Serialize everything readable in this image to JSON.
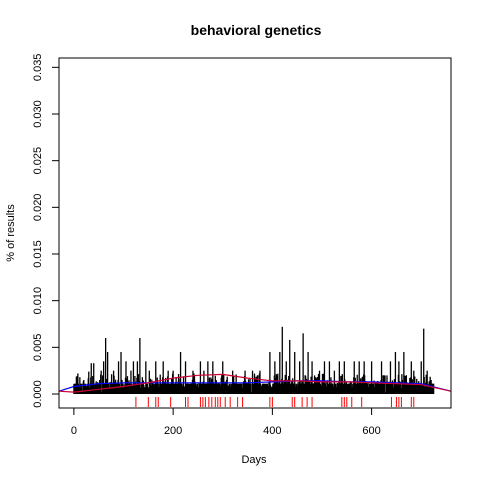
{
  "chart_data": {
    "type": "bar",
    "title": "behavioral genetics",
    "xlabel": "Days",
    "ylabel": "% of results",
    "xlim": [
      -30,
      760
    ],
    "ylim": [
      -0.0015,
      0.036
    ],
    "xticks": [
      0,
      200,
      400,
      600
    ],
    "xtick_labels": [
      "0",
      "200",
      "400",
      "600"
    ],
    "yticks": [
      0.0,
      0.005,
      0.01,
      0.015,
      0.02,
      0.025,
      0.03,
      0.035
    ],
    "ytick_labels": [
      "0.000",
      "0.005",
      "0.010",
      "0.015",
      "0.020",
      "0.025",
      "0.030",
      "0.035"
    ],
    "grid": false,
    "bar_color": "#000000",
    "day_range": [
      0,
      725
    ],
    "baseline_value": 0.0011,
    "spikes": [
      {
        "x": 8,
        "y": 0.0022
      },
      {
        "x": 12,
        "y": 0.0018
      },
      {
        "x": 20,
        "y": 0.0015
      },
      {
        "x": 30,
        "y": 0.0024
      },
      {
        "x": 35,
        "y": 0.0033
      },
      {
        "x": 40,
        "y": 0.0033
      },
      {
        "x": 55,
        "y": 0.0025
      },
      {
        "x": 60,
        "y": 0.0035
      },
      {
        "x": 64,
        "y": 0.006
      },
      {
        "x": 68,
        "y": 0.0045
      },
      {
        "x": 80,
        "y": 0.0025
      },
      {
        "x": 90,
        "y": 0.0035
      },
      {
        "x": 95,
        "y": 0.0045
      },
      {
        "x": 105,
        "y": 0.0035
      },
      {
        "x": 115,
        "y": 0.0025
      },
      {
        "x": 120,
        "y": 0.0035
      },
      {
        "x": 128,
        "y": 0.0035
      },
      {
        "x": 133,
        "y": 0.006
      },
      {
        "x": 145,
        "y": 0.0035
      },
      {
        "x": 152,
        "y": 0.0025
      },
      {
        "x": 165,
        "y": 0.0035
      },
      {
        "x": 180,
        "y": 0.0035
      },
      {
        "x": 190,
        "y": 0.0025
      },
      {
        "x": 200,
        "y": 0.0025
      },
      {
        "x": 215,
        "y": 0.0045
      },
      {
        "x": 225,
        "y": 0.0035
      },
      {
        "x": 240,
        "y": 0.0025
      },
      {
        "x": 255,
        "y": 0.0035
      },
      {
        "x": 262,
        "y": 0.0025
      },
      {
        "x": 270,
        "y": 0.0035
      },
      {
        "x": 280,
        "y": 0.0035
      },
      {
        "x": 300,
        "y": 0.0035
      },
      {
        "x": 320,
        "y": 0.0025
      },
      {
        "x": 345,
        "y": 0.0025
      },
      {
        "x": 360,
        "y": 0.0025
      },
      {
        "x": 375,
        "y": 0.0025
      },
      {
        "x": 395,
        "y": 0.0045
      },
      {
        "x": 405,
        "y": 0.0035
      },
      {
        "x": 415,
        "y": 0.0045
      },
      {
        "x": 420,
        "y": 0.0072
      },
      {
        "x": 428,
        "y": 0.0035
      },
      {
        "x": 435,
        "y": 0.0058
      },
      {
        "x": 445,
        "y": 0.0045
      },
      {
        "x": 455,
        "y": 0.0035
      },
      {
        "x": 462,
        "y": 0.0065
      },
      {
        "x": 472,
        "y": 0.0045
      },
      {
        "x": 480,
        "y": 0.0035
      },
      {
        "x": 495,
        "y": 0.0025
      },
      {
        "x": 505,
        "y": 0.0035
      },
      {
        "x": 515,
        "y": 0.0035
      },
      {
        "x": 525,
        "y": 0.0025
      },
      {
        "x": 535,
        "y": 0.0035
      },
      {
        "x": 545,
        "y": 0.0035
      },
      {
        "x": 565,
        "y": 0.0035
      },
      {
        "x": 575,
        "y": 0.0035
      },
      {
        "x": 585,
        "y": 0.0035
      },
      {
        "x": 600,
        "y": 0.0035
      },
      {
        "x": 620,
        "y": 0.0035
      },
      {
        "x": 638,
        "y": 0.0035
      },
      {
        "x": 648,
        "y": 0.0045
      },
      {
        "x": 655,
        "y": 0.0035
      },
      {
        "x": 665,
        "y": 0.0045
      },
      {
        "x": 680,
        "y": 0.0035
      },
      {
        "x": 685,
        "y": 0.0025
      },
      {
        "x": 700,
        "y": 0.0035
      },
      {
        "x": 705,
        "y": 0.007
      },
      {
        "x": 712,
        "y": 0.0025
      },
      {
        "x": 720,
        "y": 0.0015
      }
    ],
    "series": [
      {
        "color": "#0000ff",
        "x": [
          -30,
          0,
          50,
          100,
          150,
          200,
          250,
          300,
          350,
          400,
          450,
          500,
          550,
          600,
          650,
          700,
          760
        ],
        "values": [
          0.0003,
          0.0008,
          0.0011,
          0.0012,
          0.0012,
          0.0012,
          0.0012,
          0.0012,
          0.0012,
          0.0013,
          0.0014,
          0.0014,
          0.0013,
          0.0013,
          0.0012,
          0.0011,
          0.0003
        ]
      },
      {
        "color": "#cc0033",
        "x": [
          -30,
          0,
          50,
          100,
          150,
          200,
          250,
          300,
          350,
          400,
          450,
          500,
          550,
          600,
          650,
          700,
          760
        ],
        "values": [
          0.0003,
          0.0002,
          0.0005,
          0.0008,
          0.0012,
          0.0017,
          0.002,
          0.0021,
          0.0017,
          0.0014,
          0.0014,
          0.0013,
          0.0013,
          0.0012,
          0.0011,
          0.001,
          0.0003
        ]
      }
    ],
    "rug": {
      "color": "#ff0000",
      "x": [
        125,
        150,
        165,
        170,
        195,
        225,
        230,
        255,
        260,
        265,
        272,
        278,
        285,
        290,
        295,
        305,
        315,
        330,
        340,
        395,
        400,
        440,
        445,
        460,
        470,
        480,
        540,
        545,
        550,
        560,
        580,
        640,
        650,
        655,
        660,
        680,
        685
      ]
    }
  }
}
